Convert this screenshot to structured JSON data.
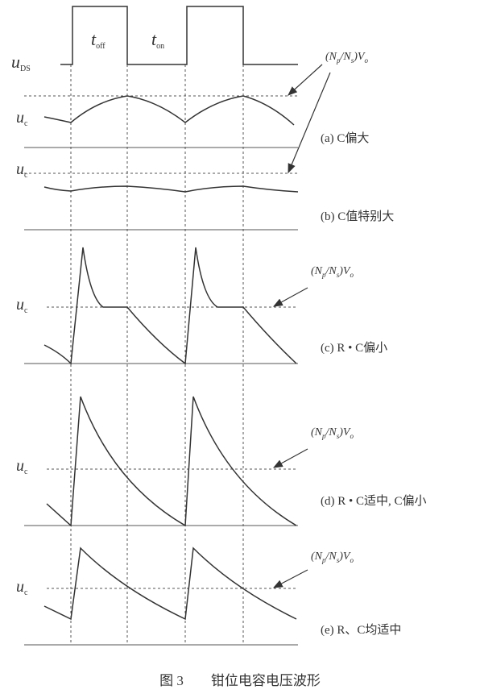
{
  "signals": {
    "uds": {
      "symbol": "u",
      "sub": "DS"
    },
    "toff": {
      "symbol": "t",
      "sub": "off"
    },
    "ton": {
      "symbol": "t",
      "sub": "on"
    }
  },
  "reference": {
    "parts": [
      "(N",
      "p",
      "/N",
      "s",
      ")V",
      "o"
    ]
  },
  "panels": [
    {
      "signal": {
        "symbol": "u",
        "sub": "c"
      },
      "caption": "(a) C偏大"
    },
    {
      "signal": {
        "symbol": "u",
        "sub": "c"
      },
      "caption": "(b) C值特别大"
    },
    {
      "signal": {
        "symbol": "u",
        "sub": "c"
      },
      "caption": "(c) R • C偏小",
      "reference": {
        "parts": [
          "(N",
          "p",
          "/N",
          "s",
          ")V",
          "o"
        ]
      }
    },
    {
      "signal": {
        "symbol": "u",
        "sub": "c"
      },
      "caption": "(d) R • C适中, C偏小",
      "reference": {
        "parts": [
          "(N",
          "p",
          "/N",
          "s",
          ")V",
          "o"
        ]
      }
    },
    {
      "signal": {
        "symbol": "u",
        "sub": "c"
      },
      "caption": "(e) R、C均适中",
      "reference": {
        "parts": [
          "(N",
          "p",
          "/N",
          "s",
          ")V",
          "o"
        ]
      }
    }
  ],
  "figure_caption": "图 3　　钳位电容电压波形"
}
